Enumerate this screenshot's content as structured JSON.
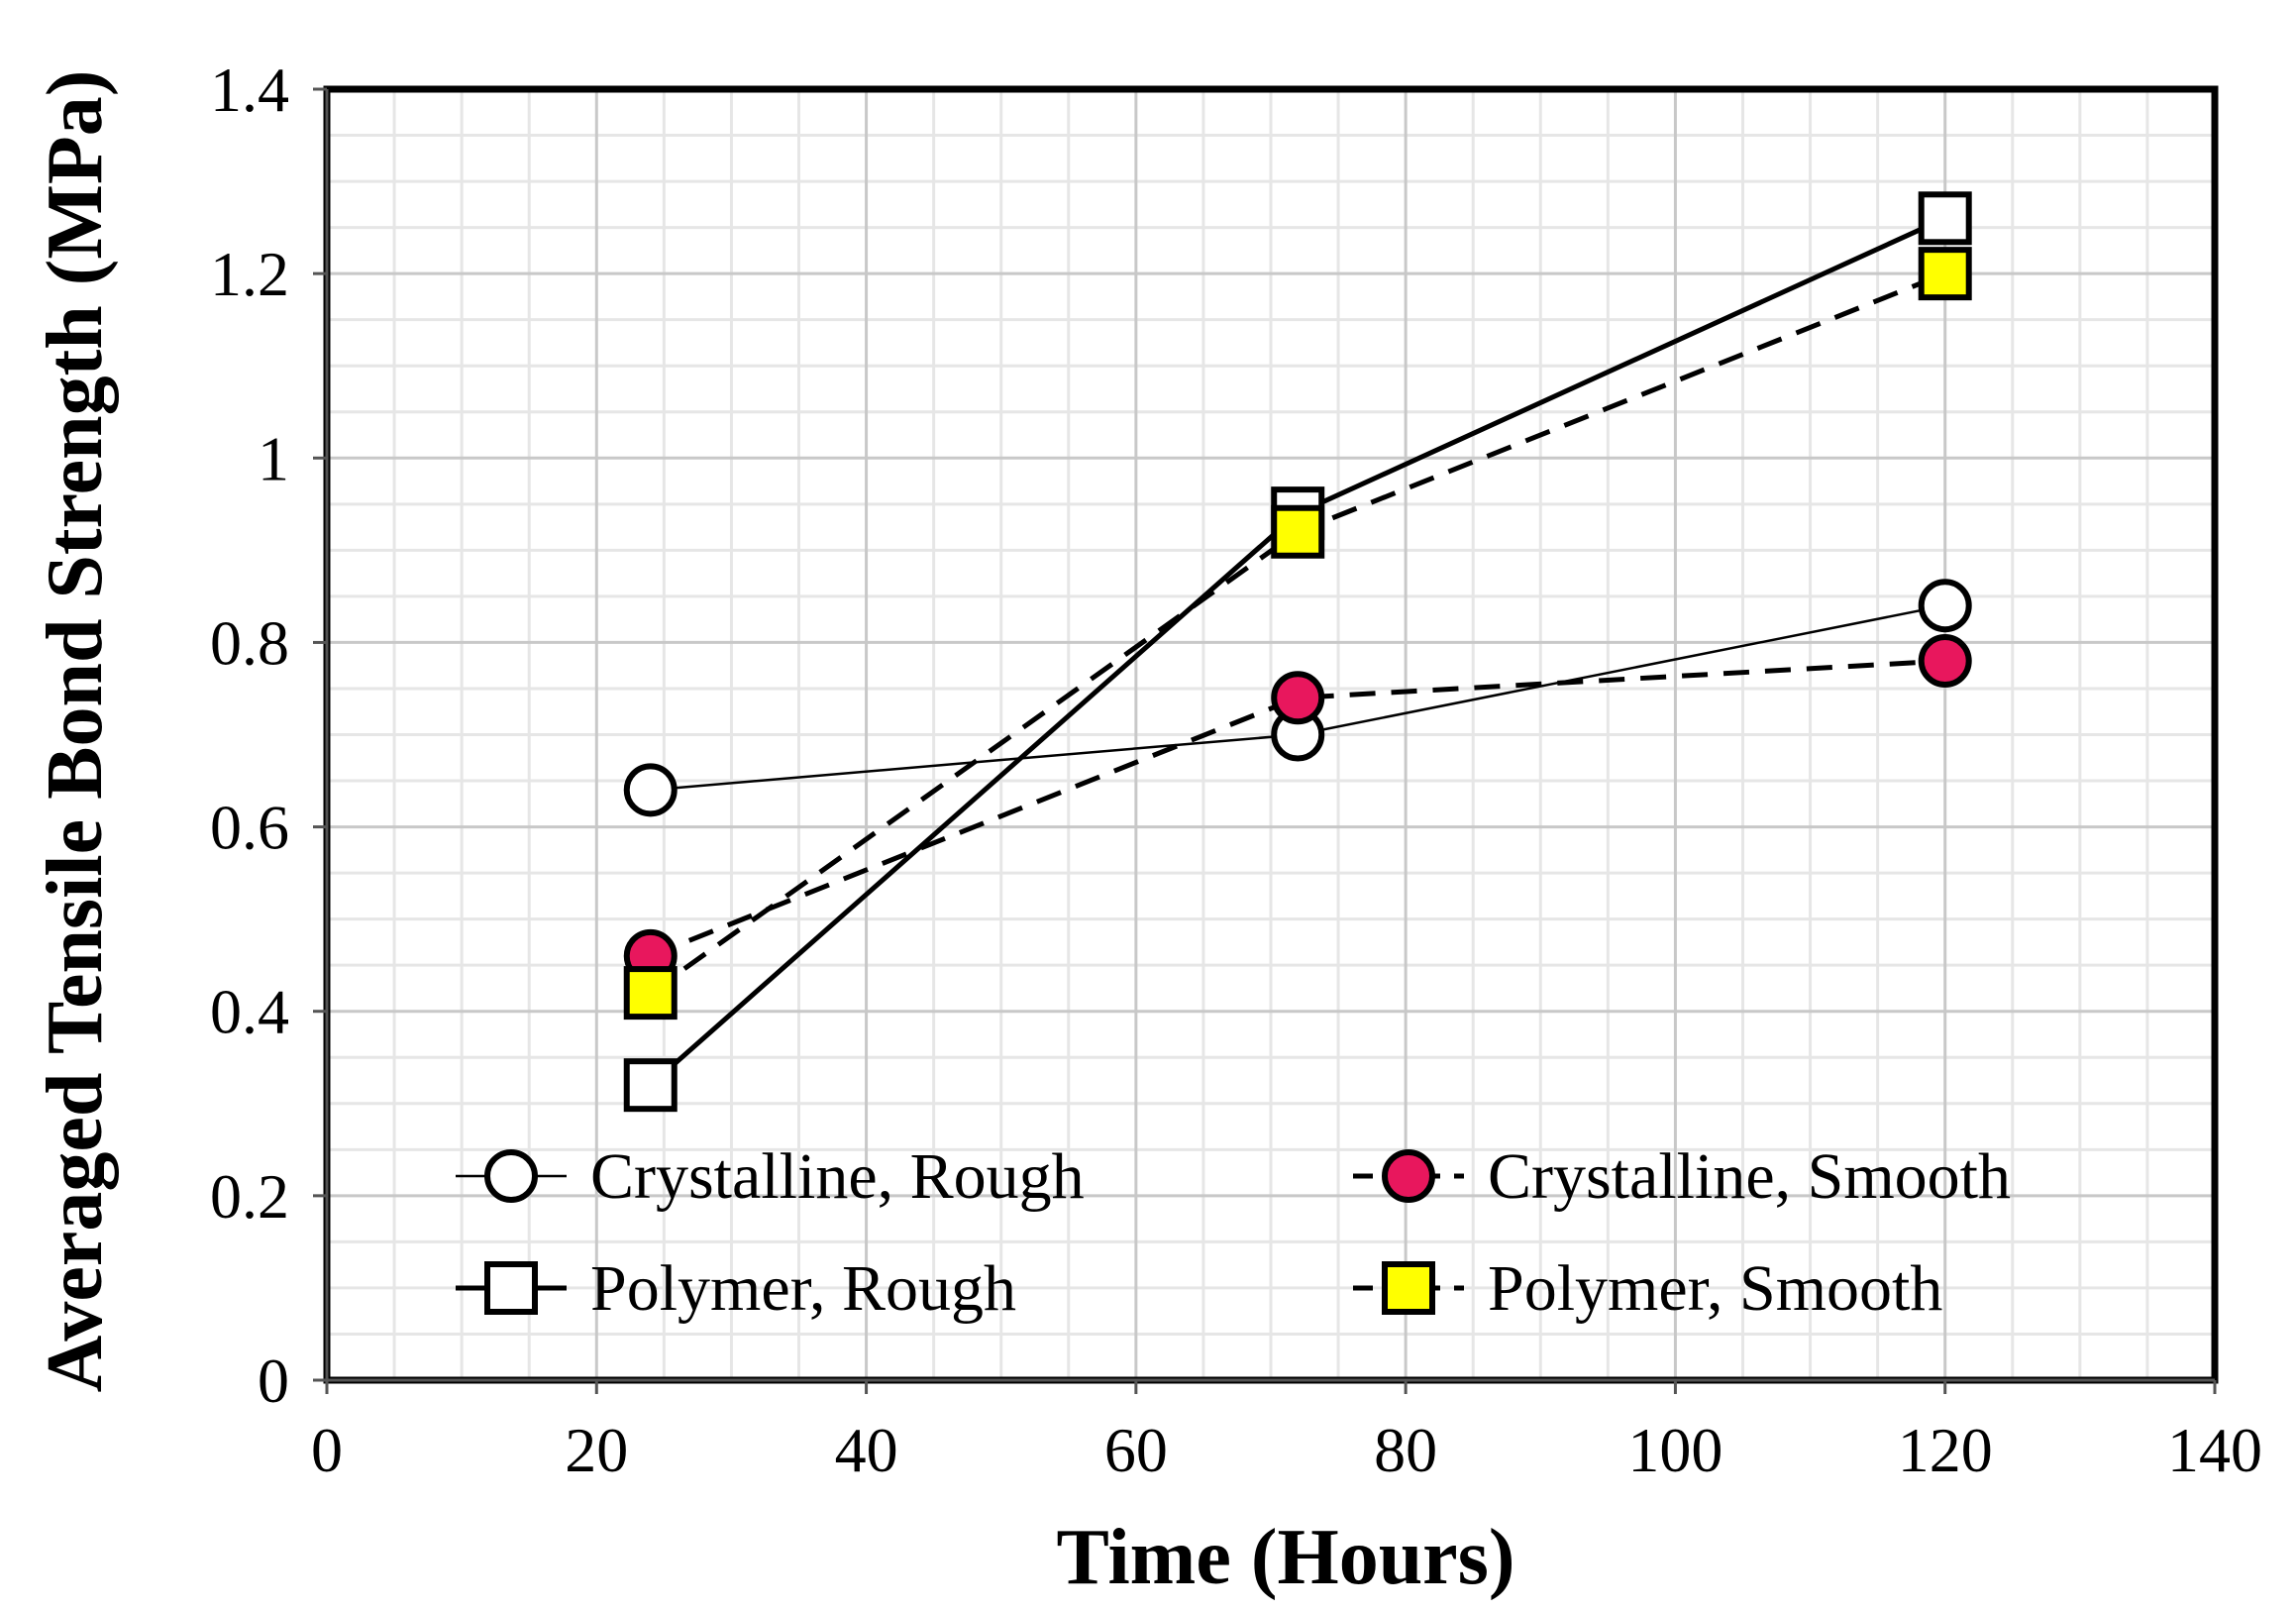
{
  "chart_data": {
    "type": "line",
    "title": "",
    "xlabel": "Time (Hours)",
    "ylabel": "Averaged Tensile Bond Strength (MPa)",
    "xlim": [
      0,
      140
    ],
    "ylim": [
      0,
      1.4
    ],
    "x_ticks": [
      0,
      20,
      40,
      60,
      80,
      100,
      120,
      140
    ],
    "y_ticks": [
      0,
      0.2,
      0.4,
      0.6,
      0.8,
      1,
      1.2,
      1.4
    ],
    "x_tick_labels": [
      "0",
      "20",
      "40",
      "60",
      "80",
      "100",
      "120",
      "140"
    ],
    "y_tick_labels": [
      "0",
      "0.2",
      "0.4",
      "0.6",
      "0.8",
      "1",
      "1.2",
      "1.4"
    ],
    "grid": true,
    "legend_position": "bottom",
    "x": [
      24,
      72,
      120
    ],
    "series": [
      {
        "name": "Crystalline, Rough",
        "values": [
          0.64,
          0.7,
          0.84
        ],
        "marker": "circle",
        "line": "thin-solid",
        "fill": "#ffffff"
      },
      {
        "name": "Crystalline, Smooth",
        "values": [
          0.46,
          0.74,
          0.78
        ],
        "marker": "circle",
        "line": "dashed",
        "fill": "#e8175d"
      },
      {
        "name": "Polymer, Rough",
        "values": [
          0.32,
          0.94,
          1.26
        ],
        "marker": "square",
        "line": "solid",
        "fill": "#ffffff"
      },
      {
        "name": "Polymer, Smooth",
        "values": [
          0.42,
          0.92,
          1.2
        ],
        "marker": "square",
        "line": "dashed",
        "fill": "#ffff00"
      }
    ]
  }
}
